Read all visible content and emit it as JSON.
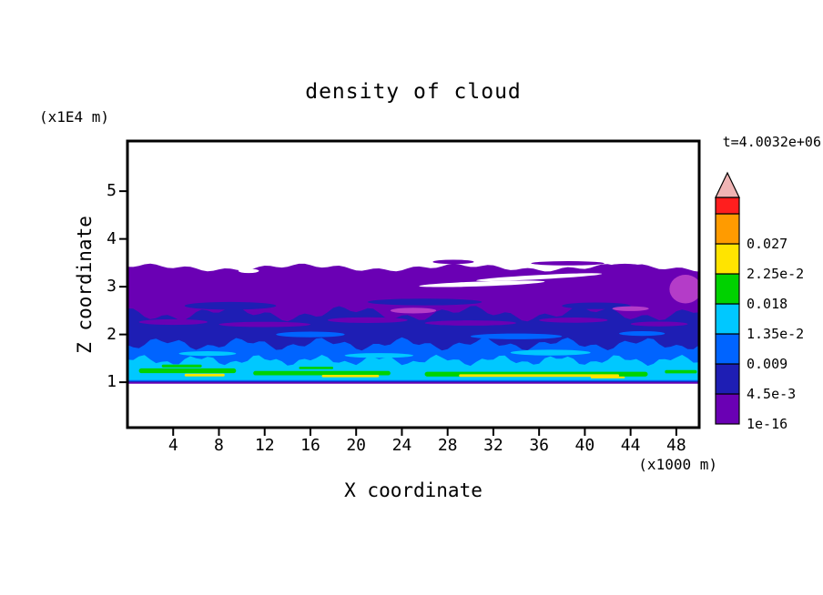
{
  "figure": {
    "title": "density of cloud",
    "timestamp": "t=4.0032e+06",
    "y_unit_label": "(x1E4 m)",
    "x_unit_label": "(x1000 m)",
    "xlabel": "X coordinate",
    "ylabel": "Z coordinate"
  },
  "colors": {
    "text": "#000000",
    "frame": "#000000",
    "background": "#ffffff"
  },
  "chart_data": {
    "type": "heatmap",
    "title": "density of cloud",
    "xlabel": "X coordinate",
    "ylabel": "Z coordinate",
    "x_unit": "(x1000 m)",
    "y_unit": "(x1E4 m)",
    "annotation": "t=4.0032e+06",
    "xlim": [
      0,
      50
    ],
    "ylim": [
      0.05,
      6.05
    ],
    "x_ticks": [
      4,
      8,
      12,
      16,
      20,
      24,
      28,
      32,
      36,
      40,
      44,
      48
    ],
    "y_ticks": [
      1,
      2,
      3,
      4,
      5
    ],
    "grid": false,
    "colorbar": {
      "position": "right",
      "levels_bottom_to_top": [
        "1e-16",
        "4.5e-3",
        "0.009",
        "1.35e-2",
        "0.018",
        "2.25e-2",
        "0.027"
      ],
      "colors_bottom_to_top": [
        "#6a00b4",
        "#1e1eb4",
        "#0064ff",
        "#00c8ff",
        "#00d200",
        "#ffe400",
        "#ff9b00",
        "#ff1e1e"
      ],
      "overflow_arrow_color": "#f0b4b4"
    },
    "field": {
      "description": "stratified cloud layer between z=1.0 and z=3.4 (x1E4 m) spanning full x range; density decreases with height",
      "layers": [
        {
          "level": "1e-16",
          "color": "#6a00b4",
          "top": 3.4,
          "bottom": 0.97,
          "wave": [
            [
              0.05,
              0.45,
              1.0
            ],
            [
              0.035,
              1.9,
              4.0
            ]
          ]
        },
        {
          "level": "4.5e-3",
          "color": "#1e1eb4",
          "top": 2.44,
          "bottom": 1.0,
          "wave": [
            [
              0.1,
              0.6,
              2.5
            ],
            [
              0.07,
              2.1,
              0.7
            ]
          ]
        },
        {
          "level": "0.009",
          "color": "#0064ff",
          "top": 1.8,
          "bottom": 1.02,
          "wave": [
            [
              0.08,
              0.9,
              5.0
            ],
            [
              0.06,
              2.6,
              2.0
            ]
          ]
        },
        {
          "level": "1.35e-2",
          "color": "#00c8ff",
          "top": 1.46,
          "bottom": 1.045,
          "wave": [
            [
              0.07,
              1.2,
              0.3
            ],
            [
              0.05,
              3.2,
              3.3
            ]
          ]
        }
      ],
      "streaks": [
        {
          "level": "0.018",
          "color": "#00d200",
          "x0": 1,
          "x1": 9.5,
          "z": 1.24,
          "h": 0.1
        },
        {
          "level": "0.018",
          "color": "#00d200",
          "x0": 11,
          "x1": 23,
          "z": 1.19,
          "h": 0.09
        },
        {
          "level": "0.018",
          "color": "#00d200",
          "x0": 26,
          "x1": 45.5,
          "z": 1.17,
          "h": 0.1
        },
        {
          "level": "0.018",
          "color": "#00d200",
          "x0": 47,
          "x1": 49.8,
          "z": 1.22,
          "h": 0.07
        },
        {
          "level": "0.018",
          "color": "#00d200",
          "x0": 3,
          "x1": 6.5,
          "z": 1.34,
          "h": 0.06
        },
        {
          "level": "0.018",
          "color": "#00d200",
          "x0": 15,
          "x1": 18,
          "z": 1.3,
          "h": 0.05
        },
        {
          "level": "2.25e-2",
          "color": "#ffe400",
          "x0": 5,
          "x1": 8.5,
          "z": 1.15,
          "h": 0.055
        },
        {
          "level": "2.25e-2",
          "color": "#ffe400",
          "x0": 17,
          "x1": 22,
          "z": 1.13,
          "h": 0.05
        },
        {
          "level": "2.25e-2",
          "color": "#ffe400",
          "x0": 29,
          "x1": 43,
          "z": 1.14,
          "h": 0.055
        },
        {
          "level": "2.25e-2",
          "color": "#ffe400",
          "x0": 40.5,
          "x1": 43.5,
          "z": 1.1,
          "h": 0.04
        }
      ],
      "patches": [
        {
          "color": "#1e1eb4",
          "x": 9,
          "z": 2.6,
          "rx": 4,
          "rz": 0.08
        },
        {
          "color": "#1e1eb4",
          "x": 26,
          "z": 2.68,
          "rx": 5,
          "rz": 0.07
        },
        {
          "color": "#1e1eb4",
          "x": 41,
          "z": 2.6,
          "rx": 3,
          "rz": 0.07
        },
        {
          "color": "#6a00b4",
          "x": 4,
          "z": 2.26,
          "rx": 3,
          "rz": 0.06
        },
        {
          "color": "#6a00b4",
          "x": 12,
          "z": 2.21,
          "rx": 4,
          "rz": 0.055
        },
        {
          "color": "#6a00b4",
          "x": 21,
          "z": 2.3,
          "rx": 3.5,
          "rz": 0.06
        },
        {
          "color": "#6a00b4",
          "x": 30,
          "z": 2.24,
          "rx": 4,
          "rz": 0.055
        },
        {
          "color": "#6a00b4",
          "x": 39,
          "z": 2.3,
          "rx": 3,
          "rz": 0.055
        },
        {
          "color": "#6a00b4",
          "x": 46.5,
          "z": 2.22,
          "rx": 2.5,
          "rz": 0.05
        },
        {
          "color": "#b43cc8",
          "x": 48.8,
          "z": 2.95,
          "rx": 1.4,
          "rz": 0.3
        },
        {
          "color": "#b43cc8",
          "x": 25,
          "z": 2.5,
          "rx": 2,
          "rz": 0.06
        },
        {
          "color": "#b43cc8",
          "x": 44,
          "z": 2.54,
          "rx": 1.6,
          "rz": 0.05
        },
        {
          "color": "#0064ff",
          "x": 16,
          "z": 2.0,
          "rx": 3,
          "rz": 0.06
        },
        {
          "color": "#0064ff",
          "x": 34,
          "z": 1.96,
          "rx": 4,
          "rz": 0.06
        },
        {
          "color": "#0064ff",
          "x": 45,
          "z": 2.02,
          "rx": 2,
          "rz": 0.05
        },
        {
          "color": "#00c8ff",
          "x": 7,
          "z": 1.6,
          "rx": 2.5,
          "rz": 0.05
        },
        {
          "color": "#00c8ff",
          "x": 22,
          "z": 1.56,
          "rx": 3,
          "rz": 0.05
        },
        {
          "color": "#00c8ff",
          "x": 37,
          "z": 1.62,
          "rx": 3.5,
          "rz": 0.06
        }
      ],
      "holes": [
        {
          "x": 31,
          "z": 3.06,
          "rx": 5.5,
          "rz": 0.05,
          "rot": -2
        },
        {
          "x": 36,
          "z": 3.2,
          "rx": 5.5,
          "rz": 0.045,
          "rot": -3
        },
        {
          "x": 10.6,
          "z": 3.33,
          "rx": 0.9,
          "rz": 0.045,
          "rot": 0
        }
      ],
      "detached_blobs": [
        {
          "color": "#6a00b4",
          "x": 28.5,
          "z": 3.52,
          "rx": 1.8,
          "rz": 0.045
        },
        {
          "color": "#6a00b4",
          "x": 38.5,
          "z": 3.49,
          "rx": 3.2,
          "rz": 0.045
        },
        {
          "color": "#6a00b4",
          "x": 43.5,
          "z": 3.44,
          "rx": 1.3,
          "rz": 0.04
        }
      ]
    }
  }
}
